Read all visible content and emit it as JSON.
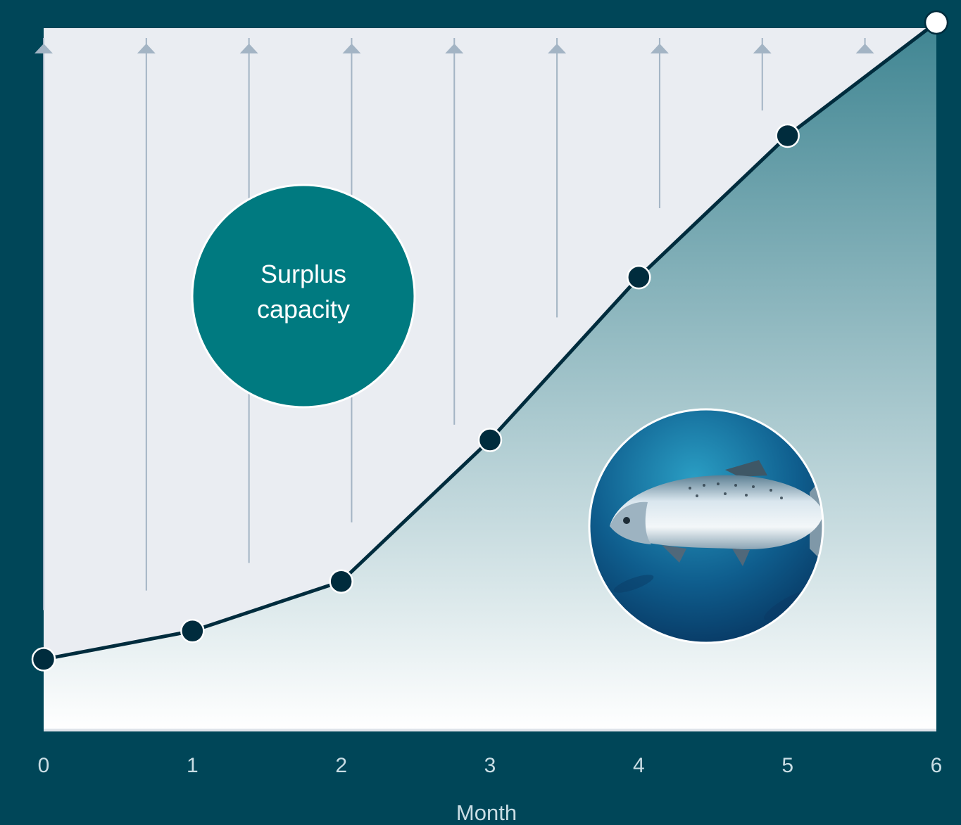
{
  "colors": {
    "background": "#004658",
    "plot_area": "#eaedf2",
    "fill_top": "#3f8592",
    "fill_bottom": "#ffffff",
    "line": "#002c3d",
    "marker": "#002c3d",
    "arrow": "#a3b4c4",
    "bubble": "#007a80",
    "axis_text": "#c9dde4"
  },
  "chart_data": {
    "type": "area",
    "x": [
      0,
      1,
      2,
      3,
      4,
      5,
      6
    ],
    "series": [
      {
        "values": [
          0.1,
          0.14,
          0.21,
          0.41,
          0.64,
          0.84,
          1.0
        ]
      }
    ],
    "xlabel": "Month",
    "ylabel": "",
    "title": "",
    "xlim": [
      0,
      6
    ],
    "ylim": [
      0,
      1
    ],
    "x_ticks": [
      "0",
      "1",
      "2",
      "3",
      "4",
      "5",
      "6"
    ],
    "grid": false,
    "legend": "none",
    "annotations": [
      {
        "text": "Surplus capacity",
        "lines": [
          "Surplus",
          "capacity"
        ]
      }
    ],
    "upward_arrows_count": 9,
    "image": "salmon-photo"
  }
}
